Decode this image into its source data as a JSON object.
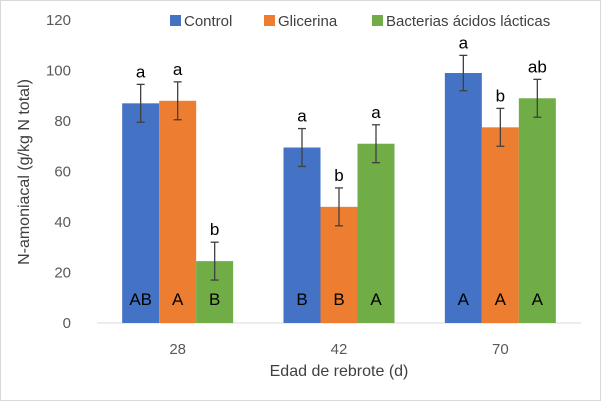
{
  "chart_data": {
    "type": "bar",
    "categories": [
      "28",
      "42",
      "70"
    ],
    "xlabel": "Edad de rebrote (d)",
    "ylabel": "N-amoniacal (g/kg N total)",
    "ylim": [
      0,
      120
    ],
    "yticks": [
      0,
      20,
      40,
      60,
      80,
      100,
      120
    ],
    "grid": false,
    "legend_position": "top",
    "series": [
      {
        "name": "Control",
        "color": "#4472C4",
        "values": [
          87,
          69.5,
          99
        ],
        "errors": [
          7.5,
          7.5,
          7
        ],
        "letters_top": [
          "a",
          "a",
          "a"
        ],
        "letters_bottom": [
          "AB",
          "B",
          "A"
        ]
      },
      {
        "name": "Glicerina",
        "color": "#ED7D31",
        "values": [
          88,
          46,
          77.5
        ],
        "errors": [
          7.5,
          7.5,
          7.5
        ],
        "letters_top": [
          "a",
          "b",
          "b"
        ],
        "letters_bottom": [
          "A",
          "B",
          "A"
        ]
      },
      {
        "name": "Bacterias ácidos lácticas",
        "color": "#70AD47",
        "values": [
          24.5,
          71,
          89
        ],
        "errors": [
          7.5,
          7.5,
          7.5
        ],
        "letters_top": [
          "b",
          "a",
          "ab"
        ],
        "letters_bottom": [
          "B",
          "A",
          "A"
        ]
      }
    ]
  }
}
